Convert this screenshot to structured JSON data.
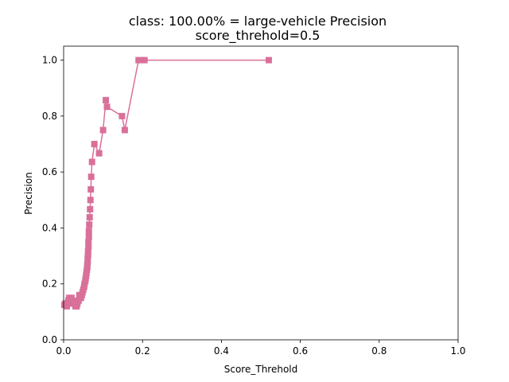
{
  "chart_data": {
    "type": "line",
    "title": "class: 100.00% = large-vehicle Precision",
    "subtitle": "score_threhold=0.5",
    "xlabel": "Score_Threhold",
    "ylabel": "Precision",
    "xlim": [
      0.0,
      1.0
    ],
    "ylim": [
      0.0,
      1.05
    ],
    "xticks": [
      "0.0",
      "0.2",
      "0.4",
      "0.6",
      "0.8",
      "1.0"
    ],
    "yticks": [
      "0.0",
      "0.2",
      "0.4",
      "0.6",
      "0.8",
      "1.0"
    ],
    "grid": false,
    "series": [
      {
        "color": "#d9709a",
        "marker": "square",
        "x": [
          0.52,
          0.205,
          0.19,
          0.155,
          0.148,
          0.11,
          0.107,
          0.1,
          0.09,
          0.078,
          0.072,
          0.07,
          0.069,
          0.068,
          0.067,
          0.066,
          0.065,
          0.064,
          0.064,
          0.063,
          0.063,
          0.062,
          0.062,
          0.061,
          0.061,
          0.06,
          0.06,
          0.059,
          0.058,
          0.057,
          0.056,
          0.055,
          0.053,
          0.052,
          0.05,
          0.048,
          0.046,
          0.044,
          0.042,
          0.04,
          0.038,
          0.035,
          0.033,
          0.03,
          0.028,
          0.025,
          0.022,
          0.02,
          0.018,
          0.016,
          0.014,
          0.012,
          0.01,
          0.008,
          0.005,
          0.002
        ],
        "y": [
          1.0,
          1.0,
          1.0,
          0.75,
          0.8,
          0.833,
          0.857,
          0.75,
          0.667,
          0.7,
          0.636,
          0.583,
          0.538,
          0.5,
          0.467,
          0.438,
          0.412,
          0.389,
          0.368,
          0.35,
          0.333,
          0.318,
          0.304,
          0.292,
          0.28,
          0.269,
          0.259,
          0.25,
          0.24,
          0.23,
          0.22,
          0.21,
          0.2,
          0.19,
          0.18,
          0.17,
          0.16,
          0.15,
          0.15,
          0.16,
          0.14,
          0.13,
          0.12,
          0.12,
          0.13,
          0.14,
          0.13,
          0.15,
          0.14,
          0.13,
          0.15,
          0.14,
          0.13,
          0.12,
          0.13,
          0.125
        ]
      }
    ]
  }
}
